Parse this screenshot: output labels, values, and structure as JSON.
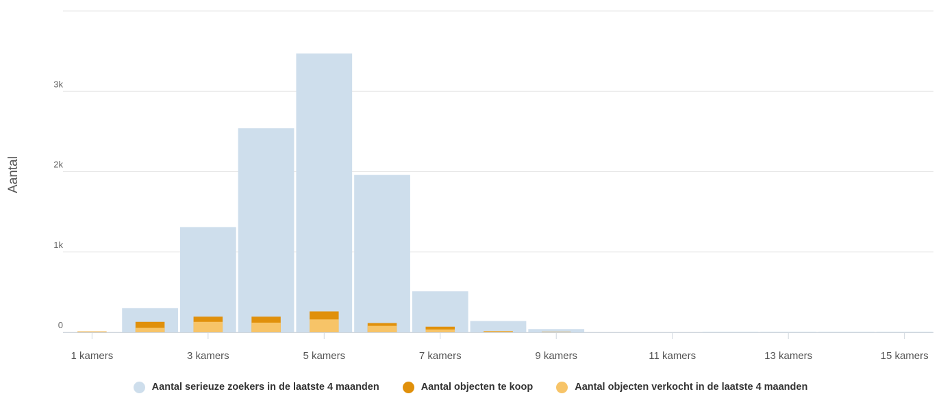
{
  "chart_data": {
    "type": "bar",
    "ylabel": "Aantal",
    "xlabel": "",
    "ylim": [
      0,
      4000
    ],
    "yticks": [
      0,
      1000,
      2000,
      3000
    ],
    "ytick_labels": [
      "0",
      "1k",
      "2k",
      "3k"
    ],
    "grid": true,
    "legend_position": "bottom",
    "categories": [
      "1 kamers",
      "2 kamers",
      "3 kamers",
      "4 kamers",
      "5 kamers",
      "6 kamers",
      "7 kamers",
      "8 kamers",
      "9 kamers",
      "10 kamers",
      "11 kamers",
      "12 kamers",
      "13 kamers",
      "14 kamers",
      "15 kamers"
    ],
    "xtick_labels": [
      "1 kamers",
      "3 kamers",
      "5 kamers",
      "7 kamers",
      "9 kamers",
      "11 kamers",
      "13 kamers",
      "15 kamers"
    ],
    "series": [
      {
        "name": "Aantal serieuze zoekers in de laatste 4 maanden",
        "color": "#cedeec",
        "values": [
          0,
          300,
          1310,
          2540,
          3470,
          1960,
          510,
          140,
          40,
          0,
          0,
          5,
          5,
          5,
          5
        ]
      },
      {
        "name": "Aantal objecten te koop",
        "color": "#e0900b",
        "values": [
          10,
          130,
          195,
          195,
          260,
          115,
          70,
          15,
          5,
          0,
          0,
          0,
          0,
          0,
          0
        ]
      },
      {
        "name": "Aantal objecten verkocht in de laatste 4 maanden",
        "color": "#f7c468",
        "values": [
          5,
          55,
          130,
          120,
          160,
          80,
          35,
          10,
          2,
          0,
          0,
          0,
          0,
          0,
          0
        ]
      }
    ]
  }
}
